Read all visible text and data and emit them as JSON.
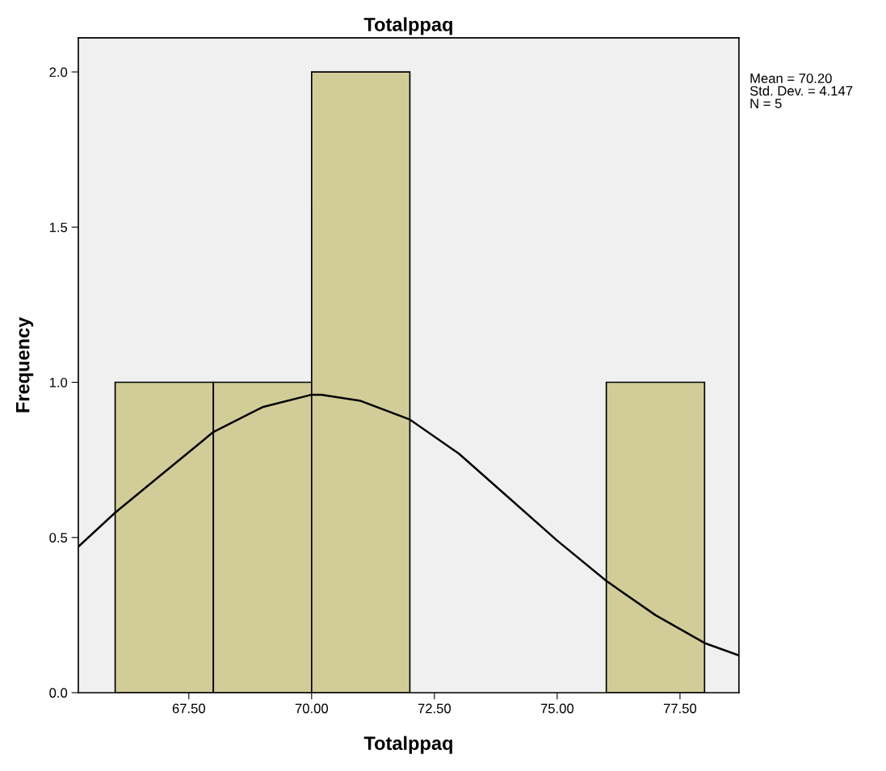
{
  "chart_data": {
    "type": "histogram",
    "title": "Totalppaq",
    "xlabel": "Totalppaq",
    "ylabel": "Frequency",
    "bins": [
      66,
      68,
      70,
      72,
      74,
      76,
      78
    ],
    "values": [
      1,
      1,
      2,
      0,
      0,
      1
    ],
    "color": "#d2cd98",
    "series": [
      {
        "type": "line",
        "color": "#000000",
        "x": [
          65.25,
          66,
          67,
          68,
          69,
          70,
          70.2,
          71,
          72,
          73,
          74,
          75,
          76,
          77,
          78,
          78.7
        ],
        "values": [
          0.47,
          0.58,
          0.71,
          0.84,
          0.92,
          0.96,
          0.96,
          0.94,
          0.88,
          0.77,
          0.63,
          0.49,
          0.36,
          0.25,
          0.16,
          0.12
        ]
      }
    ],
    "xlim": [
      65.25,
      78.7
    ],
    "ylim": [
      0,
      2.11
    ],
    "xticks": [
      {
        "value": 67.5,
        "label": "67.50"
      },
      {
        "value": 70,
        "label": "70.00"
      },
      {
        "value": 72.5,
        "label": "72.50"
      },
      {
        "value": 75,
        "label": "75.00"
      },
      {
        "value": 77.5,
        "label": "77.50"
      }
    ],
    "yticks": [
      {
        "value": 0,
        "label": "0.0"
      },
      {
        "value": 0.5,
        "label": "0.5"
      },
      {
        "value": 1,
        "label": "1.0"
      },
      {
        "value": 1.5,
        "label": "1.5"
      },
      {
        "value": 2,
        "label": "2.0"
      }
    ],
    "annotations": [
      "Mean = 70.20",
      "Std. Dev. = 4.147",
      "N = 5"
    ],
    "grid": false,
    "legend": false,
    "marker": "none",
    "line_style": "solid"
  }
}
